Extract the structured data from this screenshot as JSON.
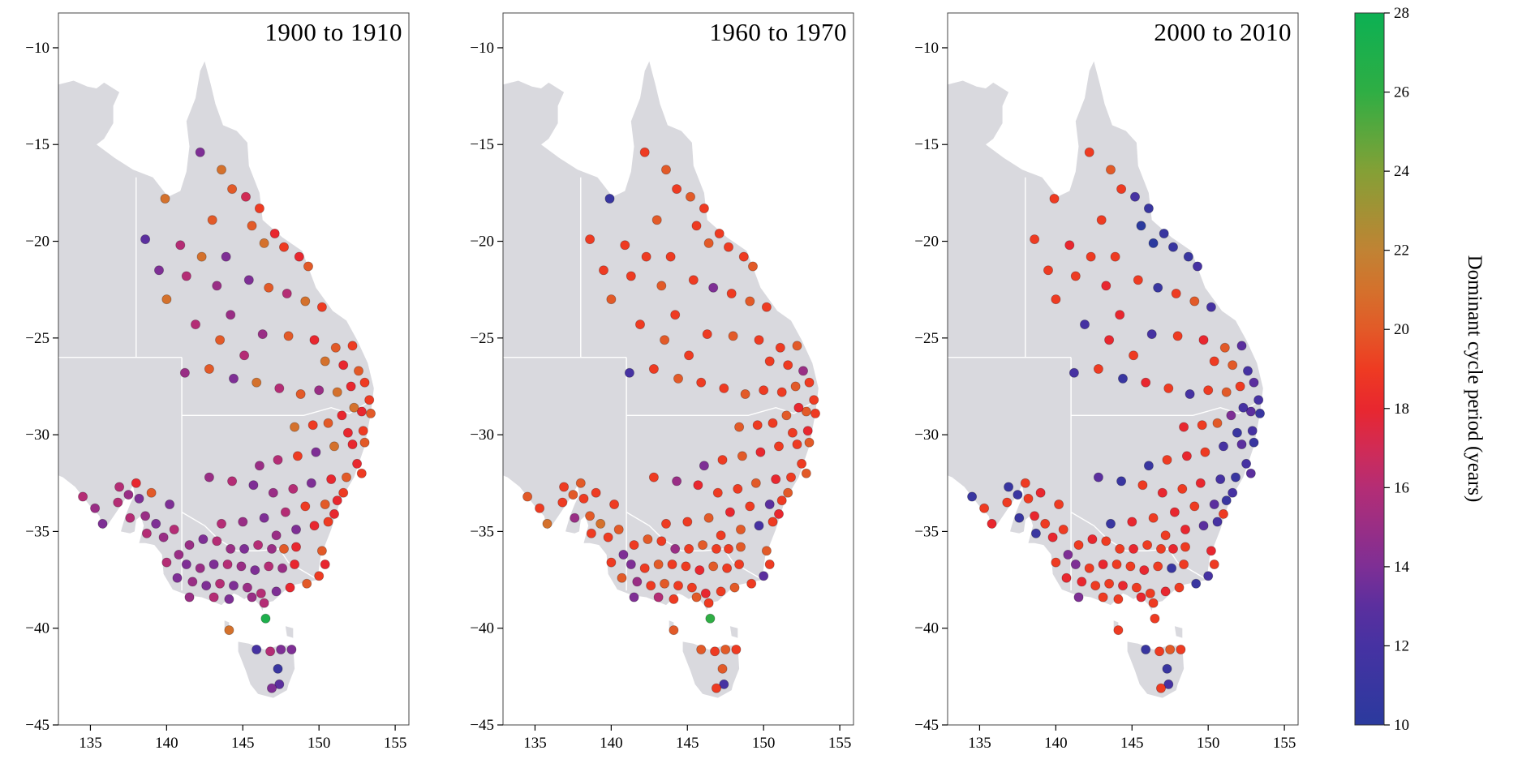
{
  "chart_data": {
    "type": "scatter",
    "description": "Maps of eastern Australia showing station dots coloured by dominant cycle period for three decades",
    "x_is": "longitude",
    "y_is": "latitude",
    "axis": {
      "xlim": [
        132.9,
        155.9
      ],
      "ylim": [
        -45,
        -8.2
      ],
      "xticks": [
        135,
        140,
        145,
        150,
        155
      ],
      "yticks": [
        -10,
        -15,
        -20,
        -25,
        -30,
        -35,
        -40,
        -45
      ],
      "grid": false
    },
    "color_scale": {
      "label": "Dominant cycle period (years)",
      "min": 10,
      "max": 28,
      "ticks": [
        10,
        12,
        14,
        16,
        18,
        20,
        22,
        24,
        26,
        28
      ],
      "stops": [
        {
          "v": 10,
          "c": "#2b3a9e"
        },
        {
          "v": 12,
          "c": "#4632a2"
        },
        {
          "v": 13,
          "c": "#5b2f9e"
        },
        {
          "v": 14,
          "c": "#7e2f95"
        },
        {
          "v": 16,
          "c": "#b42d75"
        },
        {
          "v": 17,
          "c": "#d12b55"
        },
        {
          "v": 18,
          "c": "#e8272f"
        },
        {
          "v": 19,
          "c": "#ee3b22"
        },
        {
          "v": 20,
          "c": "#e25a28"
        },
        {
          "v": 21,
          "c": "#d4712c"
        },
        {
          "v": 22,
          "c": "#c08334"
        },
        {
          "v": 24,
          "c": "#84a036"
        },
        {
          "v": 26,
          "c": "#2fae44"
        },
        {
          "v": 28,
          "c": "#0cb053"
        }
      ]
    },
    "stations": [
      [
        142.2,
        -15.4
      ],
      [
        143.6,
        -16.3
      ],
      [
        144.3,
        -17.3
      ],
      [
        139.9,
        -17.8
      ],
      [
        138.6,
        -19.9
      ],
      [
        140.9,
        -20.2
      ],
      [
        143.0,
        -18.9
      ],
      [
        145.2,
        -17.7
      ],
      [
        146.1,
        -18.3
      ],
      [
        145.6,
        -19.2
      ],
      [
        147.1,
        -19.6
      ],
      [
        146.4,
        -20.1
      ],
      [
        147.7,
        -20.3
      ],
      [
        148.7,
        -20.8
      ],
      [
        149.3,
        -21.3
      ],
      [
        143.9,
        -20.8
      ],
      [
        142.3,
        -20.8
      ],
      [
        141.3,
        -21.8
      ],
      [
        143.3,
        -22.3
      ],
      [
        145.4,
        -22.0
      ],
      [
        146.7,
        -22.4
      ],
      [
        147.9,
        -22.7
      ],
      [
        149.1,
        -23.1
      ],
      [
        150.2,
        -23.4
      ],
      [
        144.2,
        -23.8
      ],
      [
        139.5,
        -21.5
      ],
      [
        140.0,
        -23.0
      ],
      [
        141.9,
        -24.3
      ],
      [
        146.3,
        -24.8
      ],
      [
        148.0,
        -24.9
      ],
      [
        149.7,
        -25.1
      ],
      [
        151.1,
        -25.5
      ],
      [
        152.2,
        -25.4
      ],
      [
        150.4,
        -26.2
      ],
      [
        151.6,
        -26.4
      ],
      [
        152.6,
        -26.7
      ],
      [
        153.0,
        -27.3
      ],
      [
        152.1,
        -27.5
      ],
      [
        151.2,
        -27.8
      ],
      [
        150.0,
        -27.7
      ],
      [
        148.8,
        -27.9
      ],
      [
        147.4,
        -27.6
      ],
      [
        145.9,
        -27.3
      ],
      [
        144.4,
        -27.1
      ],
      [
        142.8,
        -26.6
      ],
      [
        141.2,
        -26.8
      ],
      [
        145.1,
        -25.9
      ],
      [
        143.5,
        -25.1
      ],
      [
        153.3,
        -28.2
      ],
      [
        152.8,
        -28.8
      ],
      [
        153.4,
        -28.9
      ],
      [
        152.3,
        -28.6
      ],
      [
        151.5,
        -29.0
      ],
      [
        150.6,
        -29.4
      ],
      [
        149.6,
        -29.5
      ],
      [
        148.4,
        -29.6
      ],
      [
        151.9,
        -29.9
      ],
      [
        152.9,
        -29.8
      ],
      [
        153.0,
        -30.4
      ],
      [
        152.2,
        -30.5
      ],
      [
        151.0,
        -30.6
      ],
      [
        149.8,
        -30.9
      ],
      [
        148.6,
        -31.1
      ],
      [
        147.3,
        -31.3
      ],
      [
        146.1,
        -31.6
      ],
      [
        152.5,
        -31.5
      ],
      [
        152.8,
        -32.0
      ],
      [
        151.8,
        -32.2
      ],
      [
        150.8,
        -32.3
      ],
      [
        149.5,
        -32.5
      ],
      [
        148.3,
        -32.8
      ],
      [
        147.0,
        -33.0
      ],
      [
        145.7,
        -32.6
      ],
      [
        144.3,
        -32.4
      ],
      [
        142.8,
        -32.2
      ],
      [
        151.6,
        -33.0
      ],
      [
        151.2,
        -33.4
      ],
      [
        150.4,
        -33.6
      ],
      [
        149.1,
        -33.7
      ],
      [
        147.8,
        -34.0
      ],
      [
        146.4,
        -34.3
      ],
      [
        145.0,
        -34.5
      ],
      [
        143.6,
        -34.6
      ],
      [
        151.0,
        -34.1
      ],
      [
        150.6,
        -34.5
      ],
      [
        149.7,
        -34.7
      ],
      [
        148.5,
        -34.9
      ],
      [
        147.2,
        -35.2
      ],
      [
        134.5,
        -33.2
      ],
      [
        135.3,
        -33.8
      ],
      [
        135.8,
        -34.6
      ],
      [
        136.8,
        -33.5
      ],
      [
        137.5,
        -33.1
      ],
      [
        137.6,
        -34.3
      ],
      [
        138.2,
        -33.3
      ],
      [
        138.6,
        -34.2
      ],
      [
        138.7,
        -35.1
      ],
      [
        139.3,
        -34.6
      ],
      [
        139.8,
        -35.3
      ],
      [
        140.5,
        -34.9
      ],
      [
        140.2,
        -33.6
      ],
      [
        139.0,
        -33.0
      ],
      [
        138.0,
        -32.5
      ],
      [
        136.9,
        -32.7
      ],
      [
        140.8,
        -36.2
      ],
      [
        140.0,
        -36.6
      ],
      [
        140.7,
        -37.4
      ],
      [
        141.5,
        -35.7
      ],
      [
        142.4,
        -35.4
      ],
      [
        143.3,
        -35.5
      ],
      [
        144.2,
        -35.9
      ],
      [
        145.1,
        -35.9
      ],
      [
        146.0,
        -35.7
      ],
      [
        146.9,
        -35.9
      ],
      [
        147.7,
        -35.9
      ],
      [
        148.5,
        -35.8
      ],
      [
        141.3,
        -36.7
      ],
      [
        142.2,
        -36.9
      ],
      [
        143.1,
        -36.7
      ],
      [
        144.0,
        -36.7
      ],
      [
        144.9,
        -36.8
      ],
      [
        145.8,
        -37.0
      ],
      [
        146.7,
        -36.8
      ],
      [
        147.6,
        -36.9
      ],
      [
        148.4,
        -36.7
      ],
      [
        141.7,
        -37.6
      ],
      [
        142.6,
        -37.8
      ],
      [
        143.5,
        -37.7
      ],
      [
        144.4,
        -37.8
      ],
      [
        145.3,
        -37.9
      ],
      [
        146.2,
        -38.2
      ],
      [
        147.2,
        -38.1
      ],
      [
        148.1,
        -37.9
      ],
      [
        149.2,
        -37.7
      ],
      [
        150.0,
        -37.3
      ],
      [
        150.4,
        -36.7
      ],
      [
        150.2,
        -36.0
      ],
      [
        143.1,
        -38.4
      ],
      [
        144.1,
        -38.5
      ],
      [
        145.6,
        -38.4
      ],
      [
        146.4,
        -38.7
      ],
      [
        141.5,
        -38.4
      ],
      [
        146.5,
        -39.5
      ],
      [
        144.1,
        -40.1
      ],
      [
        145.9,
        -41.1
      ],
      [
        146.8,
        -41.2
      ],
      [
        147.5,
        -41.1
      ],
      [
        148.2,
        -41.1
      ],
      [
        147.3,
        -42.1
      ],
      [
        147.4,
        -42.9
      ],
      [
        146.9,
        -43.1
      ]
    ],
    "series": [
      {
        "name": "1900 to 1910",
        "values": [
          14,
          21,
          20,
          21,
          13,
          16,
          20,
          17,
          19,
          20,
          18,
          21,
          19,
          18,
          20,
          14,
          21,
          16,
          15,
          14,
          20,
          16,
          21,
          19,
          15,
          14,
          21,
          16,
          15,
          20,
          18,
          20,
          19,
          21,
          18,
          20,
          19,
          18,
          21,
          15,
          20,
          16,
          21,
          14,
          20,
          15,
          16,
          20,
          19,
          18,
          20,
          21,
          18,
          20,
          19,
          21,
          18,
          19,
          20,
          18,
          21,
          14,
          19,
          16,
          15,
          18,
          19,
          20,
          18,
          14,
          16,
          15,
          14,
          16,
          15,
          19,
          18,
          20,
          19,
          16,
          14,
          15,
          16,
          18,
          19,
          18,
          14,
          15,
          16,
          15,
          14,
          16,
          15,
          16,
          14,
          15,
          16,
          14,
          15,
          16,
          14,
          20,
          18,
          16,
          15,
          16,
          14,
          15,
          14,
          16,
          15,
          14,
          16,
          15,
          20,
          18,
          14,
          15,
          14,
          16,
          15,
          14,
          16,
          15,
          18,
          15,
          14,
          16,
          14,
          15,
          16,
          14,
          18,
          20,
          19,
          18,
          20,
          16,
          14,
          15,
          16,
          15,
          27,
          21,
          12,
          16,
          14,
          14,
          11,
          13,
          14
        ]
      },
      {
        "name": "1960 to 1970",
        "values": [
          19,
          20,
          19,
          11,
          19,
          19,
          20,
          20,
          19,
          19,
          19,
          20,
          19,
          19,
          20,
          19,
          19,
          19,
          20,
          19,
          14,
          19,
          20,
          19,
          19,
          19,
          20,
          19,
          19,
          20,
          19,
          19,
          20,
          19,
          19,
          15,
          19,
          20,
          19,
          19,
          20,
          19,
          19,
          20,
          19,
          12,
          19,
          20,
          19,
          20,
          19,
          18,
          20,
          19,
          19,
          20,
          19,
          18,
          20,
          19,
          19,
          18,
          20,
          19,
          14,
          19,
          20,
          19,
          18,
          20,
          19,
          19,
          18,
          15,
          19,
          20,
          19,
          13,
          19,
          18,
          20,
          19,
          19,
          18,
          19,
          12,
          20,
          19,
          20,
          19,
          21,
          19,
          20,
          15,
          19,
          20,
          19,
          21,
          19,
          20,
          19,
          19,
          20,
          19,
          14,
          19,
          20,
          19,
          20,
          19,
          15,
          19,
          20,
          19,
          19,
          20,
          14,
          19,
          20,
          19,
          19,
          18,
          20,
          19,
          19,
          15,
          19,
          20,
          19,
          19,
          18,
          19,
          20,
          19,
          13,
          19,
          20,
          16,
          19,
          20,
          19,
          14,
          26,
          20,
          20,
          19,
          20,
          19,
          20,
          12,
          19
        ]
      },
      {
        "name": "2000 to 2010",
        "values": [
          19,
          20,
          19,
          19,
          19,
          18,
          19,
          12,
          11,
          10,
          11,
          10,
          11,
          11,
          12,
          19,
          19,
          19,
          18,
          19,
          11,
          19,
          20,
          12,
          18,
          19,
          19,
          12,
          12,
          19,
          18,
          20,
          13,
          19,
          20,
          12,
          13,
          19,
          20,
          19,
          12,
          19,
          18,
          11,
          19,
          12,
          19,
          18,
          12,
          13,
          11,
          12,
          14,
          20,
          19,
          18,
          11,
          12,
          11,
          13,
          12,
          19,
          18,
          19,
          11,
          12,
          13,
          11,
          12,
          18,
          19,
          18,
          19,
          11,
          13,
          12,
          11,
          13,
          19,
          18,
          19,
          18,
          11,
          19,
          12,
          13,
          18,
          19,
          11,
          19,
          18,
          19,
          11,
          11,
          19,
          18,
          11,
          19,
          18,
          19,
          19,
          18,
          19,
          11,
          14,
          19,
          18,
          19,
          18,
          19,
          19,
          18,
          19,
          19,
          18,
          19,
          14,
          19,
          18,
          19,
          19,
          18,
          19,
          11,
          19,
          18,
          19,
          19,
          18,
          19,
          19,
          18,
          19,
          11,
          12,
          19,
          18,
          19,
          19,
          18,
          19,
          14,
          19,
          19,
          11,
          19,
          20,
          19,
          11,
          12,
          19
        ]
      }
    ],
    "map": {
      "land_color": "#d9d9de",
      "border_color": "#ffffff",
      "sea_color": "#ffffff"
    }
  }
}
